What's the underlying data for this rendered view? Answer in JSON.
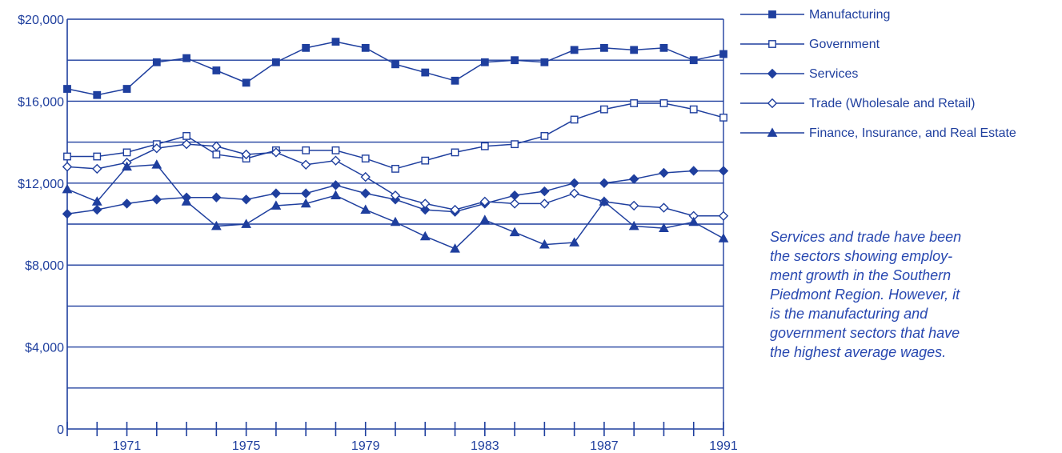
{
  "chart_data": {
    "type": "line",
    "title": "",
    "xlabel": "",
    "ylabel": "",
    "x": [
      1969,
      1970,
      1971,
      1972,
      1973,
      1974,
      1975,
      1976,
      1977,
      1978,
      1979,
      1980,
      1981,
      1982,
      1983,
      1984,
      1985,
      1986,
      1987,
      1988,
      1989,
      1990,
      1991
    ],
    "x_tick_labels": [
      {
        "year": 1971,
        "label": "1971"
      },
      {
        "year": 1975,
        "label": "1975"
      },
      {
        "year": 1979,
        "label": "1979"
      },
      {
        "year": 1983,
        "label": "1983"
      },
      {
        "year": 1987,
        "label": "1987"
      },
      {
        "year": 1991,
        "label": "1991"
      }
    ],
    "ylim": [
      0,
      20000
    ],
    "y_gridlines": [
      2000,
      4000,
      6000,
      8000,
      10000,
      12000,
      14000,
      16000,
      18000,
      20000
    ],
    "y_tick_labels": [
      {
        "value": 0,
        "label": "0"
      },
      {
        "value": 4000,
        "label": "$4,000"
      },
      {
        "value": 8000,
        "label": "$8,000"
      },
      {
        "value": 12000,
        "label": "$12,000"
      },
      {
        "value": 16000,
        "label": "$16,000"
      },
      {
        "value": 20000,
        "label": "$20,000"
      }
    ],
    "grid": true,
    "legend_position": "right",
    "line_color": "#1f3f9e",
    "series": [
      {
        "name": "Manufacturing",
        "marker": "filled-square",
        "values": [
          16600,
          16300,
          16600,
          17900,
          18100,
          17500,
          16900,
          17900,
          18600,
          18900,
          18600,
          17800,
          17400,
          17000,
          17900,
          18000,
          17900,
          18500,
          18600,
          18500,
          18600,
          18000,
          18300
        ]
      },
      {
        "name": "Government",
        "marker": "open-square",
        "values": [
          13300,
          13300,
          13500,
          13900,
          14300,
          13400,
          13200,
          13600,
          13600,
          13600,
          13200,
          12700,
          13100,
          13500,
          13800,
          13900,
          14300,
          15100,
          15600,
          15900,
          15900,
          15600,
          15200
        ]
      },
      {
        "name": "Services",
        "marker": "filled-diamond",
        "values": [
          10500,
          10700,
          11000,
          11200,
          11300,
          11300,
          11200,
          11500,
          11500,
          11900,
          11500,
          11200,
          10700,
          10600,
          11000,
          11400,
          11600,
          12000,
          12000,
          12200,
          12500,
          12600,
          12600
        ]
      },
      {
        "name": "Trade (Wholesale and Retail)",
        "marker": "open-diamond",
        "values": [
          12800,
          12700,
          13000,
          13700,
          13900,
          13800,
          13400,
          13500,
          12900,
          13100,
          12300,
          11400,
          11000,
          10700,
          11100,
          11000,
          11000,
          11500,
          11100,
          10900,
          10800,
          10400,
          10400
        ]
      },
      {
        "name": "Finance, Insurance, and Real Estate",
        "marker": "filled-triangle",
        "values": [
          11700,
          11100,
          12800,
          12900,
          11100,
          9900,
          10000,
          10900,
          11000,
          11400,
          10700,
          10100,
          9400,
          8800,
          10200,
          9600,
          9000,
          9100,
          11100,
          9900,
          9800,
          10100,
          9300
        ]
      }
    ]
  },
  "note": {
    "lines": [
      "Services and trade have been",
      "the sectors showing employ-",
      "ment growth in the Southern",
      "Piedmont Region.  However, it",
      "is the manufacturing and",
      "government sectors that have",
      "the highest average wages."
    ]
  }
}
